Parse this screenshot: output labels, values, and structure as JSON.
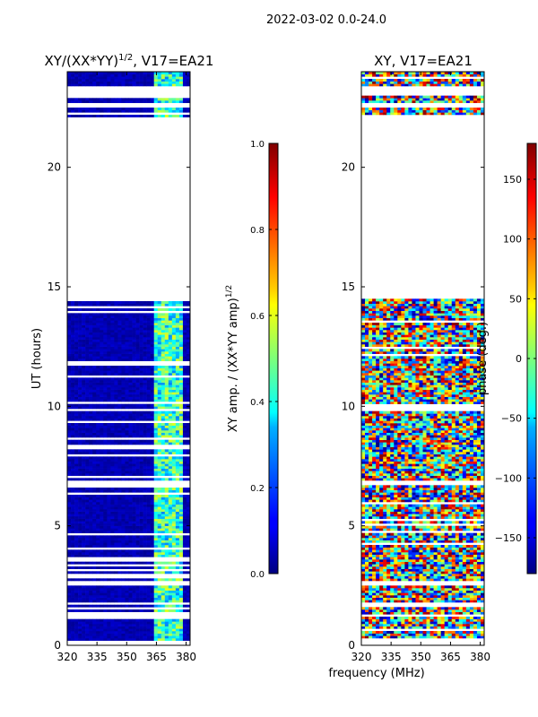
{
  "figure_title": "2022-03-02 0.0-24.0",
  "chart_data": [
    {
      "type": "heatmap",
      "title_main": "XY/(XX*YY)",
      "title_sup": "1/2",
      "title_tail": ", V17=EA21",
      "xlabel": "",
      "ylabel": "UT (hours)",
      "xlim": [
        320,
        382
      ],
      "ylim": [
        0,
        24
      ],
      "xticks": [
        320,
        335,
        350,
        365,
        380
      ],
      "yticks": [
        0,
        5,
        10,
        15,
        20
      ],
      "colorscale": "jet",
      "colorbar": {
        "label_main": "XY amp. / (XX*YY amp)",
        "label_sup": "1/2",
        "range": [
          0,
          1
        ],
        "ticks": [
          "0.0",
          "0.2",
          "0.4",
          "0.6",
          "0.8",
          "1.0"
        ],
        "tick_values": [
          0,
          0.2,
          0.4,
          0.6,
          0.8,
          1.0
        ]
      },
      "data_rows_hours": [
        [
          0.2,
          1.2
        ],
        [
          1.3,
          2.5
        ],
        [
          2.7,
          6.7
        ],
        [
          6.9,
          14.5
        ],
        [
          22.1,
          22.5
        ],
        [
          22.7,
          23.0
        ],
        [
          23.4,
          24.0
        ]
      ]
    },
    {
      "type": "heatmap",
      "title": "XY, V17=EA21",
      "xlabel": "frequency (MHz)",
      "ylabel": "",
      "xlim": [
        320,
        382
      ],
      "ylim": [
        0,
        24
      ],
      "xticks": [
        320,
        335,
        350,
        365,
        380
      ],
      "yticks": [
        0,
        5,
        10,
        15,
        20
      ],
      "colorscale": "jet",
      "colorbar": {
        "label": "phase (deg.)",
        "range": [
          -180,
          180
        ],
        "ticks": [
          "150",
          "100",
          "50",
          "0",
          "−50",
          "−100",
          "−150"
        ],
        "tick_values": [
          150,
          100,
          50,
          0,
          -50,
          -100,
          -150
        ]
      },
      "data_rows_hours": [
        [
          0.2,
          1.2
        ],
        [
          1.3,
          2.5
        ],
        [
          2.7,
          6.7
        ],
        [
          6.9,
          14.5
        ],
        [
          22.1,
          22.5
        ],
        [
          22.7,
          23.0
        ],
        [
          23.4,
          24.0
        ]
      ]
    }
  ]
}
